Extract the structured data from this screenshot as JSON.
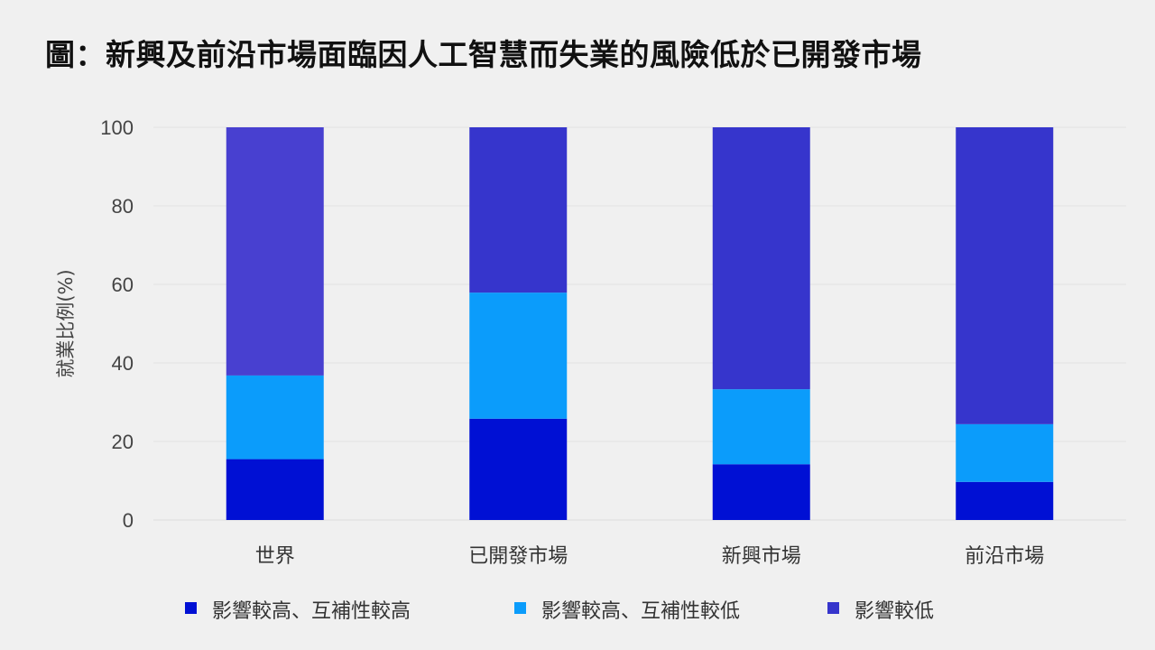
{
  "title": "圖：新興及前沿市場面臨因人工智慧而失業的風險低於已開發市場",
  "chart_data": {
    "type": "bar",
    "stacked": true,
    "title": "圖：新興及前沿市場面臨因人工智慧而失業的風險低於已開發市場",
    "xlabel": "",
    "ylabel": "就業比例(%)",
    "ylim": [
      0,
      100
    ],
    "yticks": [
      0,
      20,
      40,
      60,
      80,
      100
    ],
    "grid": true,
    "legend_position": "bottom",
    "categories": [
      "世界",
      "已開發市場",
      "新興市場",
      "前沿市場"
    ],
    "series": [
      {
        "name": "影響較高、互補性較高",
        "color": "#0010d4",
        "values": [
          15.5,
          25.8,
          14.2,
          9.7
        ]
      },
      {
        "name": "影響較高、互補性較低",
        "color": "#0b9cfb",
        "values": [
          21.3,
          32.1,
          19.1,
          14.7
        ]
      },
      {
        "name": "影響較低",
        "color": "#3635cc",
        "values": [
          63.2,
          42.1,
          66.7,
          75.6
        ]
      }
    ],
    "bar_colors_override": {
      "0-2": "#4840d0"
    }
  }
}
